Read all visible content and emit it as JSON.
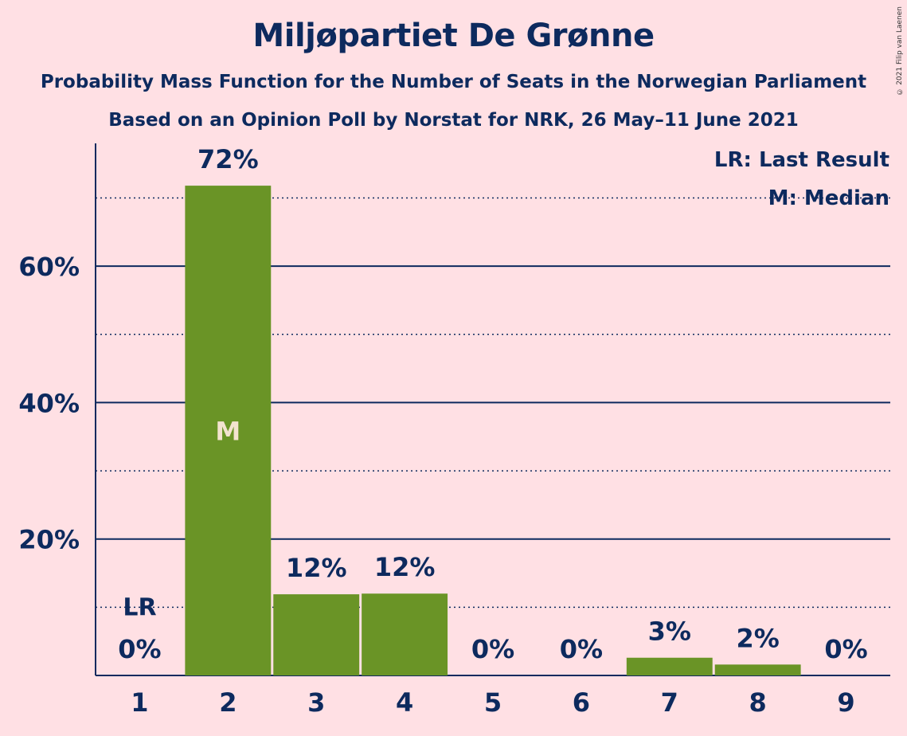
{
  "title": "Miljøpartiet De Grønne",
  "subtitle": "Probability Mass Function for the Number of Seats in the Norwegian Parliament",
  "subtitle2": "Based on an Opinion Poll by Norstat for NRK, 26 May–11 June 2021",
  "copyright": "© 2021 Filip van Laenen",
  "legend": {
    "last_result": "LR: Last Result",
    "median": "M: Median"
  },
  "colors": {
    "bar": "#6A9426",
    "text": "#0D2A5E",
    "background": "#FFE0E4"
  },
  "chart_data": {
    "type": "bar",
    "categories": [
      "1",
      "2",
      "3",
      "4",
      "5",
      "6",
      "7",
      "8",
      "9"
    ],
    "values": [
      0,
      72,
      12,
      12,
      0,
      0,
      3,
      2,
      0
    ],
    "value_labels": [
      "0%",
      "72%",
      "12%",
      "12%",
      "0%",
      "0%",
      "3%",
      "2%",
      "0%"
    ],
    "true_values": [
      0,
      71.8,
      11.9,
      12.0,
      0,
      0,
      2.6,
      1.6,
      0
    ],
    "ylim": [
      0,
      78
    ],
    "yticks": [
      20,
      40,
      60
    ],
    "ytick_labels": [
      "20%",
      "40%",
      "60%"
    ],
    "minor_gridlines": [
      10,
      30,
      50,
      70
    ],
    "last_result_category": "1",
    "last_result_marker": "LR",
    "last_result_level": 10,
    "median_category": "2",
    "median_marker": "M",
    "legend_position": "top-right"
  }
}
